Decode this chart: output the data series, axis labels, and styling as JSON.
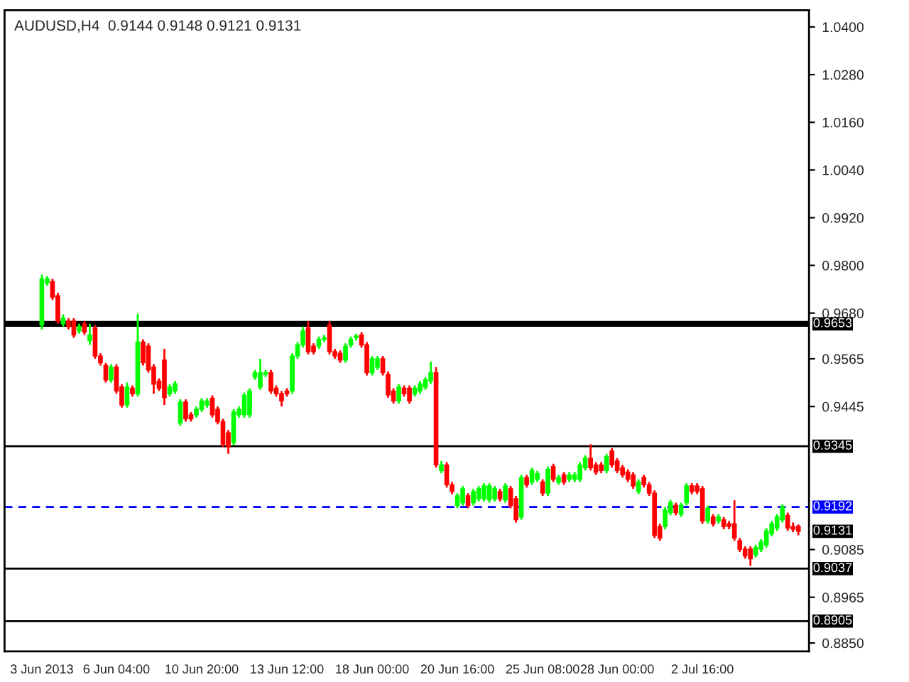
{
  "chart_data": {
    "type": "candlestick",
    "title": "AUDUSD,H4  0.9144 0.9148 0.9121 0.9131",
    "categories": [
      "3 Jun 2013",
      null,
      null,
      null,
      null,
      null,
      null,
      null,
      null,
      null,
      null,
      null,
      null,
      null,
      "6 Jun 04:00",
      null,
      null,
      null,
      null,
      null,
      null,
      null,
      null,
      null,
      null,
      null,
      null,
      null,
      null,
      null,
      "10 Jun 20:00",
      null,
      null,
      null,
      null,
      null,
      null,
      null,
      null,
      null,
      null,
      null,
      null,
      null,
      null,
      null,
      "13 Jun 12:00",
      null,
      null,
      null,
      null,
      null,
      null,
      null,
      null,
      null,
      null,
      null,
      null,
      null,
      null,
      null,
      "18 Jun 00:00",
      null,
      null,
      null,
      null,
      null,
      null,
      null,
      null,
      null,
      null,
      null,
      null,
      null,
      null,
      null,
      "20 Jun 16:00",
      null,
      null,
      null,
      null,
      null,
      null,
      null,
      null,
      null,
      null,
      null,
      null,
      null,
      null,
      null,
      "25 Jun 08:00",
      null,
      null,
      null,
      null,
      null,
      null,
      null,
      null,
      null,
      null,
      null,
      null,
      null,
      "28 Jun 00:00",
      null,
      null,
      null,
      null,
      null,
      null,
      null,
      null,
      null,
      null,
      null,
      null,
      null,
      null,
      null,
      "2 Jul 16:00",
      null,
      null,
      null,
      null,
      null,
      null,
      null,
      null,
      null,
      null,
      null,
      null,
      null,
      null,
      null,
      null,
      null,
      null
    ],
    "ohlc": [
      [
        0.965,
        0.9777,
        0.9639,
        0.9766
      ],
      [
        0.9756,
        0.9773,
        0.9749,
        0.9766
      ],
      [
        0.9759,
        0.9766,
        0.9713,
        0.972
      ],
      [
        0.9724,
        0.9731,
        0.9653,
        0.966
      ],
      [
        0.9653,
        0.9677,
        0.9646,
        0.9667
      ],
      [
        0.966,
        0.9667,
        0.9639,
        0.9646
      ],
      [
        0.966,
        0.9667,
        0.9618,
        0.9625
      ],
      [
        0.9635,
        0.9653,
        0.9628,
        0.9646
      ],
      [
        0.9653,
        0.966,
        0.9625,
        0.9632
      ],
      [
        0.9611,
        0.9653,
        0.96,
        0.9625
      ],
      [
        0.9643,
        0.965,
        0.9565,
        0.9572
      ],
      [
        0.9572,
        0.9579,
        0.9548,
        0.9555
      ],
      [
        0.9548,
        0.9555,
        0.9505,
        0.9512
      ],
      [
        0.9512,
        0.9551,
        0.9505,
        0.9544
      ],
      [
        0.9544,
        0.9551,
        0.9477,
        0.9484
      ],
      [
        0.9494,
        0.9501,
        0.9442,
        0.9449
      ],
      [
        0.9449,
        0.9505,
        0.9442,
        0.9494
      ],
      [
        0.9491,
        0.9498,
        0.947,
        0.9477
      ],
      [
        0.9477,
        0.9678,
        0.947,
        0.9607
      ],
      [
        0.9607,
        0.9614,
        0.9548,
        0.9555
      ],
      [
        0.9597,
        0.9604,
        0.953,
        0.9537
      ],
      [
        0.9544,
        0.9551,
        0.9477,
        0.9501
      ],
      [
        0.9509,
        0.9516,
        0.9484,
        0.9491
      ],
      [
        0.9562,
        0.959,
        0.9449,
        0.9467
      ],
      [
        0.9477,
        0.9501,
        0.947,
        0.9494
      ],
      [
        0.9484,
        0.9509,
        0.9477,
        0.9502
      ],
      [
        0.9403,
        0.9463,
        0.9396,
        0.9456
      ],
      [
        0.9456,
        0.9463,
        0.9407,
        0.9414
      ],
      [
        0.9424,
        0.9431,
        0.9407,
        0.9414
      ],
      [
        0.9424,
        0.9445,
        0.9417,
        0.9438
      ],
      [
        0.9438,
        0.9466,
        0.9431,
        0.9459
      ],
      [
        0.9449,
        0.9466,
        0.9442,
        0.9459
      ],
      [
        0.9466,
        0.9473,
        0.9417,
        0.9424
      ],
      [
        0.9438,
        0.9445,
        0.94,
        0.9407
      ],
      [
        0.9407,
        0.9414,
        0.9343,
        0.935
      ],
      [
        0.9379,
        0.9386,
        0.9326,
        0.9343
      ],
      [
        0.9354,
        0.9438,
        0.9347,
        0.9431
      ],
      [
        0.9424,
        0.9445,
        0.9417,
        0.9438
      ],
      [
        0.9424,
        0.948,
        0.9417,
        0.9473
      ],
      [
        0.9424,
        0.9491,
        0.9417,
        0.9484
      ],
      [
        0.9519,
        0.9537,
        0.9512,
        0.953
      ],
      [
        0.9494,
        0.9565,
        0.9487,
        0.953
      ],
      [
        0.9526,
        0.9537,
        0.9519,
        0.953
      ],
      [
        0.953,
        0.9537,
        0.9477,
        0.9484
      ],
      [
        0.9491,
        0.9498,
        0.947,
        0.9477
      ],
      [
        0.9477,
        0.9484,
        0.9445,
        0.9459
      ],
      [
        0.9484,
        0.9491,
        0.947,
        0.9477
      ],
      [
        0.9484,
        0.9579,
        0.9477,
        0.9572
      ],
      [
        0.9572,
        0.9607,
        0.9565,
        0.96
      ],
      [
        0.96,
        0.9646,
        0.9593,
        0.9636
      ],
      [
        0.9643,
        0.966,
        0.9576,
        0.9583
      ],
      [
        0.9597,
        0.9604,
        0.9576,
        0.9583
      ],
      [
        0.9597,
        0.9621,
        0.959,
        0.9614
      ],
      [
        0.9614,
        0.9625,
        0.9607,
        0.9618
      ],
      [
        0.965,
        0.966,
        0.9576,
        0.9583
      ],
      [
        0.9583,
        0.959,
        0.9565,
        0.9572
      ],
      [
        0.9579,
        0.9586,
        0.9555,
        0.9562
      ],
      [
        0.9562,
        0.9604,
        0.9555,
        0.9597
      ],
      [
        0.96,
        0.9621,
        0.9593,
        0.9614
      ],
      [
        0.9618,
        0.9628,
        0.9611,
        0.9622
      ],
      [
        0.9625,
        0.9632,
        0.9593,
        0.96
      ],
      [
        0.96,
        0.9607,
        0.9523,
        0.953
      ],
      [
        0.953,
        0.9572,
        0.9523,
        0.9565
      ],
      [
        0.9544,
        0.9572,
        0.9537,
        0.9565
      ],
      [
        0.9565,
        0.9572,
        0.9523,
        0.953
      ],
      [
        0.9526,
        0.9533,
        0.9467,
        0.9474
      ],
      [
        0.9484,
        0.9491,
        0.9452,
        0.9459
      ],
      [
        0.9459,
        0.9501,
        0.9452,
        0.9494
      ],
      [
        0.9491,
        0.9498,
        0.947,
        0.9477
      ],
      [
        0.9491,
        0.9498,
        0.9452,
        0.9459
      ],
      [
        0.9477,
        0.9498,
        0.947,
        0.9491
      ],
      [
        0.9484,
        0.9509,
        0.9477,
        0.9502
      ],
      [
        0.9494,
        0.9519,
        0.9487,
        0.9512
      ],
      [
        0.9509,
        0.9558,
        0.9502,
        0.953
      ],
      [
        0.953,
        0.9544,
        0.9291,
        0.9298
      ],
      [
        0.9284,
        0.9308,
        0.9277,
        0.9298
      ],
      [
        0.9298,
        0.9305,
        0.9241,
        0.9248
      ],
      [
        0.9248,
        0.9255,
        0.9224,
        0.9231
      ],
      [
        0.9196,
        0.9227,
        0.9189,
        0.922
      ],
      [
        0.9203,
        0.9245,
        0.9196,
        0.9238
      ],
      [
        0.922,
        0.9227,
        0.9189,
        0.9196
      ],
      [
        0.9203,
        0.9238,
        0.9196,
        0.9231
      ],
      [
        0.9213,
        0.9245,
        0.9206,
        0.9238
      ],
      [
        0.9213,
        0.9252,
        0.9206,
        0.9245
      ],
      [
        0.921,
        0.9252,
        0.9203,
        0.9245
      ],
      [
        0.9213,
        0.9245,
        0.9206,
        0.9238
      ],
      [
        0.9231,
        0.9238,
        0.9206,
        0.9213
      ],
      [
        0.921,
        0.9252,
        0.9203,
        0.9245
      ],
      [
        0.9238,
        0.9245,
        0.9189,
        0.9196
      ],
      [
        0.9213,
        0.922,
        0.9153,
        0.916
      ],
      [
        0.9167,
        0.9273,
        0.916,
        0.9266
      ],
      [
        0.9266,
        0.9273,
        0.9241,
        0.9248
      ],
      [
        0.9255,
        0.9291,
        0.9248,
        0.9284
      ],
      [
        0.9262,
        0.9283,
        0.9255,
        0.9276
      ],
      [
        0.9255,
        0.9262,
        0.922,
        0.9227
      ],
      [
        0.9227,
        0.9294,
        0.922,
        0.9287
      ],
      [
        0.9294,
        0.9301,
        0.9255,
        0.9262
      ],
      [
        0.9255,
        0.9273,
        0.9248,
        0.9266
      ],
      [
        0.9273,
        0.928,
        0.9248,
        0.9255
      ],
      [
        0.9262,
        0.928,
        0.9255,
        0.9273
      ],
      [
        0.9262,
        0.928,
        0.9255,
        0.9273
      ],
      [
        0.9262,
        0.9305,
        0.9255,
        0.9298
      ],
      [
        0.9291,
        0.9322,
        0.9284,
        0.9315
      ],
      [
        0.9315,
        0.935,
        0.9284,
        0.9291
      ],
      [
        0.9298,
        0.9305,
        0.9273,
        0.928
      ],
      [
        0.9298,
        0.9305,
        0.9277,
        0.9284
      ],
      [
        0.9284,
        0.9326,
        0.9277,
        0.9319
      ],
      [
        0.9333,
        0.934,
        0.9291,
        0.9298
      ],
      [
        0.9308,
        0.9315,
        0.9277,
        0.9284
      ],
      [
        0.9291,
        0.9298,
        0.9266,
        0.9273
      ],
      [
        0.928,
        0.9287,
        0.9255,
        0.9262
      ],
      [
        0.9273,
        0.928,
        0.9238,
        0.9245
      ],
      [
        0.9231,
        0.9262,
        0.9224,
        0.9255
      ],
      [
        0.9266,
        0.9273,
        0.9241,
        0.9248
      ],
      [
        0.9248,
        0.9255,
        0.922,
        0.9227
      ],
      [
        0.9227,
        0.9234,
        0.9114,
        0.9121
      ],
      [
        0.9143,
        0.915,
        0.9107,
        0.9114
      ],
      [
        0.9143,
        0.9192,
        0.9136,
        0.9185
      ],
      [
        0.9178,
        0.921,
        0.9171,
        0.9203
      ],
      [
        0.9196,
        0.9203,
        0.9171,
        0.9178
      ],
      [
        0.9174,
        0.9203,
        0.9167,
        0.9196
      ],
      [
        0.9203,
        0.9252,
        0.9196,
        0.9245
      ],
      [
        0.9245,
        0.9252,
        0.9224,
        0.9231
      ],
      [
        0.9245,
        0.9252,
        0.9224,
        0.9231
      ],
      [
        0.9238,
        0.9245,
        0.915,
        0.9157
      ],
      [
        0.9157,
        0.9196,
        0.915,
        0.9189
      ],
      [
        0.9167,
        0.9174,
        0.9143,
        0.915
      ],
      [
        0.9157,
        0.9174,
        0.915,
        0.9167
      ],
      [
        0.916,
        0.9167,
        0.9136,
        0.9143
      ],
      [
        0.915,
        0.9157,
        0.9136,
        0.9143
      ],
      [
        0.915,
        0.9209,
        0.9107,
        0.9114
      ],
      [
        0.9107,
        0.9114,
        0.9079,
        0.9086
      ],
      [
        0.9086,
        0.9093,
        0.9062,
        0.9069
      ],
      [
        0.9086,
        0.9093,
        0.9044,
        0.9062
      ],
      [
        0.9072,
        0.9097,
        0.9065,
        0.909
      ],
      [
        0.9086,
        0.9111,
        0.9079,
        0.9104
      ],
      [
        0.9097,
        0.9139,
        0.909,
        0.9132
      ],
      [
        0.9125,
        0.9157,
        0.9118,
        0.915
      ],
      [
        0.9139,
        0.9174,
        0.9132,
        0.9167
      ],
      [
        0.916,
        0.9199,
        0.9153,
        0.9192
      ],
      [
        0.9171,
        0.9178,
        0.9132,
        0.9139
      ],
      [
        0.9143,
        0.9153,
        0.9129,
        0.9136
      ],
      [
        0.9144,
        0.9148,
        0.9121,
        0.9131
      ]
    ],
    "colors": [
      "#00ff00",
      "#00ff00",
      "#ff0000",
      "#ff0000",
      "#00ff00",
      "#ff0000",
      "#ff0000",
      "#00ff00",
      "#ff0000",
      "#00ff00",
      "#ff0000",
      "#ff0000",
      "#ff0000",
      "#00ff00",
      "#ff0000",
      "#ff0000",
      "#00ff00",
      "#ff0000",
      "#00ff00",
      "#ff0000",
      "#ff0000",
      "#ff0000",
      "#ff0000",
      "#ff0000",
      "#00ff00",
      "#00ff00",
      "#00ff00",
      "#ff0000",
      "#ff0000",
      "#00ff00",
      "#00ff00",
      "#00ff00",
      "#ff0000",
      "#ff0000",
      "#ff0000",
      "#ff0000",
      "#00ff00",
      "#00ff00",
      "#00ff00",
      "#00ff00",
      "#00ff00",
      "#00ff00",
      "#00ff00",
      "#ff0000",
      "#ff0000",
      "#ff0000",
      "#ff0000",
      "#00ff00",
      "#00ff00",
      "#00ff00",
      "#ff0000",
      "#ff0000",
      "#00ff00",
      "#00ff00",
      "#ff0000",
      "#ff0000",
      "#ff0000",
      "#00ff00",
      "#00ff00",
      "#00ff00",
      "#ff0000",
      "#ff0000",
      "#00ff00",
      "#00ff00",
      "#ff0000",
      "#ff0000",
      "#ff0000",
      "#00ff00",
      "#ff0000",
      "#ff0000",
      "#00ff00",
      "#00ff00",
      "#00ff00",
      "#00ff00",
      "#ff0000",
      "#00ff00",
      "#ff0000",
      "#ff0000",
      "#00ff00",
      "#00ff00",
      "#ff0000",
      "#00ff00",
      "#00ff00",
      "#00ff00",
      "#00ff00",
      "#00ff00",
      "#ff0000",
      "#00ff00",
      "#ff0000",
      "#ff0000",
      "#00ff00",
      "#ff0000",
      "#00ff00",
      "#00ff00",
      "#ff0000",
      "#00ff00",
      "#ff0000",
      "#00ff00",
      "#ff0000",
      "#00ff00",
      "#00ff00",
      "#00ff00",
      "#00ff00",
      "#ff0000",
      "#ff0000",
      "#ff0000",
      "#00ff00",
      "#ff0000",
      "#ff0000",
      "#ff0000",
      "#ff0000",
      "#ff0000",
      "#00ff00",
      "#ff0000",
      "#ff0000",
      "#ff0000",
      "#ff0000",
      "#00ff00",
      "#00ff00",
      "#ff0000",
      "#00ff00",
      "#00ff00",
      "#ff0000",
      "#ff0000",
      "#ff0000",
      "#00ff00",
      "#ff0000",
      "#00ff00",
      "#ff0000",
      "#ff0000",
      "#ff0000",
      "#ff0000",
      "#ff0000",
      "#ff0000",
      "#00ff00",
      "#00ff00",
      "#00ff00",
      "#00ff00",
      "#00ff00",
      "#00ff00",
      "#ff0000",
      "#ff0000",
      "#ff0000"
    ],
    "ylim": [
      0.8829,
      1.0442
    ],
    "yticks": [
      {
        "value": 1.04,
        "label": "1.0400"
      },
      {
        "value": 1.028,
        "label": "1.0280"
      },
      {
        "value": 1.016,
        "label": "1.0160"
      },
      {
        "value": 1.004,
        "label": "1.0040"
      },
      {
        "value": 0.992,
        "label": "0.9920"
      },
      {
        "value": 0.98,
        "label": "0.9800"
      },
      {
        "value": 0.968,
        "label": "0.9680"
      },
      0.9565,
      0.9445,
      0.9085,
      0.8965,
      {
        "value": 0.885,
        "label": "0.8850"
      }
    ],
    "ref_lines": [
      {
        "axis": "y",
        "value": 0.9653,
        "label": "0.9653",
        "color": "#000000",
        "line_style": "solid"
      },
      {
        "axis": "y",
        "value": 0.9345,
        "label": "0.9345",
        "color": "#000000",
        "line_style": "solid"
      },
      {
        "axis": "y",
        "value": 0.9192,
        "label": "0.9192",
        "color": "#0000ff",
        "line_style": "dashed"
      },
      {
        "axis": "y",
        "value": 0.9037,
        "label": "0.9037",
        "color": "#000000",
        "line_style": "solid"
      },
      {
        "axis": "y",
        "value": 0.8905,
        "label": "0.8905",
        "color": "#000000",
        "line_style": "solid"
      }
    ],
    "annotations": [
      "0.9131"
    ],
    "grid": false
  }
}
